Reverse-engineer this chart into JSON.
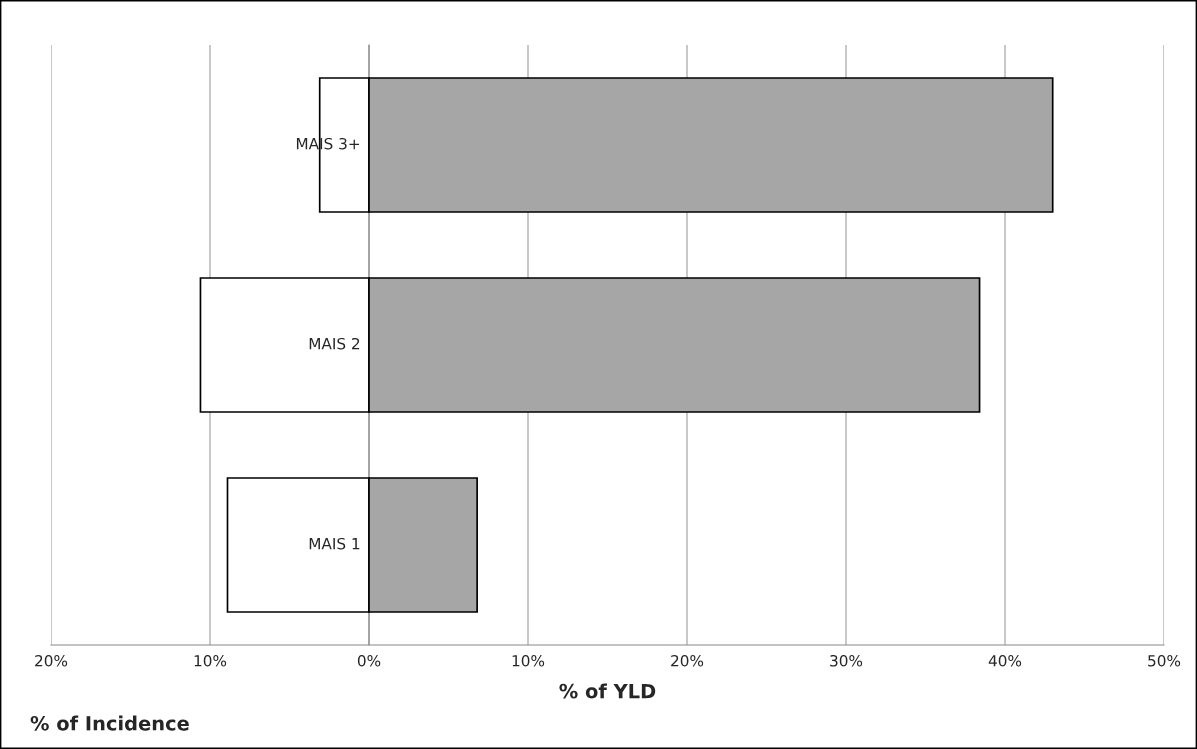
{
  "chart_data": {
    "type": "bar",
    "orientation": "horizontal",
    "stacked": true,
    "categories": [
      "MAIS 3+",
      "MAIS 2",
      "MAIS 1"
    ],
    "series": [
      {
        "color": "#ffffff",
        "values": [
          -3.1,
          -10.6,
          -8.9
        ]
      },
      {
        "color": "#a6a6a6",
        "values": [
          43.0,
          38.4,
          6.8
        ]
      }
    ],
    "xlim": [
      -20,
      50
    ],
    "xticks": [
      {
        "value": -20,
        "label": "20%"
      },
      {
        "value": -10,
        "label": "10%"
      },
      {
        "value": 0,
        "label": "0%"
      },
      {
        "value": 10,
        "label": "10%"
      },
      {
        "value": 20,
        "label": "20%"
      },
      {
        "value": 30,
        "label": "30%"
      },
      {
        "value": 40,
        "label": "40%"
      },
      {
        "value": 50,
        "label": "50%"
      }
    ],
    "xlabel": "% of YLD",
    "annotations": [
      "% of Incidence"
    ],
    "grid": "x"
  }
}
